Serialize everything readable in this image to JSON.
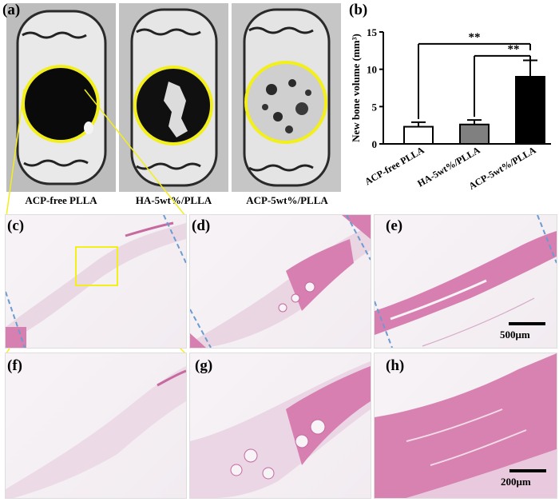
{
  "panel_labels": {
    "a": "(a)",
    "b": "(b)",
    "c": "(c)",
    "d": "(d)",
    "e": "(e)",
    "f": "(f)",
    "g": "(g)",
    "h": "(h)"
  },
  "ct_captions": [
    "ACP-free PLLA",
    "HA-5wt%/PLLA",
    "ACP-5wt%/PLLA"
  ],
  "scale_bars": {
    "upper": "500μm",
    "lower": "200μm"
  },
  "colors": {
    "highlight": "#f2ef1a",
    "tissue": "#d77fb0",
    "dashed": "#6b9bd1",
    "bar_fills": [
      "#ffffff",
      "#808080",
      "#000000"
    ]
  },
  "chart_data": {
    "type": "bar",
    "ylabel": "New bone volume (mm³)",
    "categories": [
      "ACP-free PLLA",
      "HA-5wt%/PLLA",
      "ACP-5wt%/PLLA"
    ],
    "values": [
      2.3,
      2.6,
      9.0
    ],
    "errors": [
      0.6,
      0.6,
      2.2
    ],
    "ylim": [
      0,
      15
    ],
    "yticks": [
      0,
      5,
      10,
      15
    ],
    "significance": [
      {
        "from": 0,
        "to": 2,
        "label": "**"
      },
      {
        "from": 1,
        "to": 2,
        "label": "**"
      }
    ]
  }
}
